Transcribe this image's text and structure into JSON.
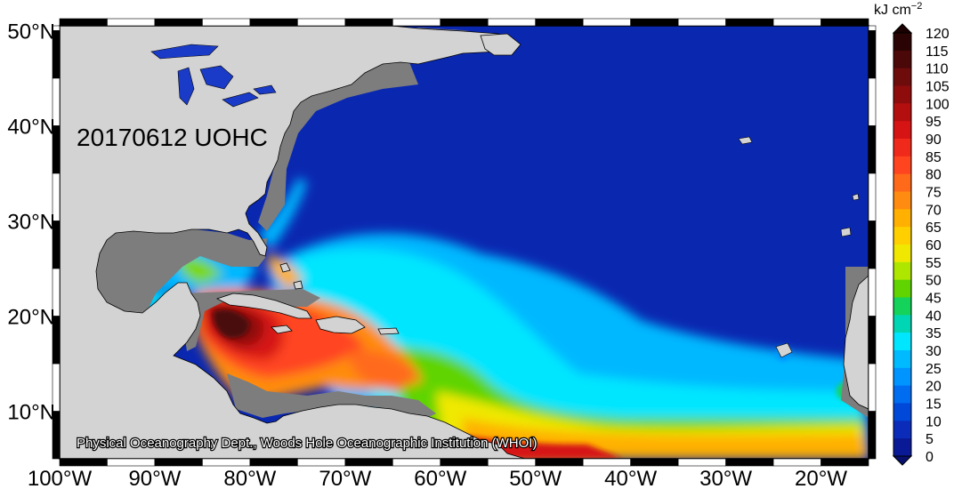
{
  "map": {
    "title": "20170612 UOHC",
    "credit": "Physical Oceanography Dept., Woods Hole Oceanographic Institution (WHOI)",
    "projection": "equirectangular",
    "lon_range": [
      -100,
      -15
    ],
    "lat_range": [
      5,
      50.5
    ],
    "lon_ticks": [
      "100°W",
      "90°W",
      "80°W",
      "70°W",
      "60°W",
      "50°W",
      "40°W",
      "30°W",
      "20°W"
    ],
    "lat_ticks": [
      "10°N",
      "20°N",
      "30°N",
      "40°N",
      "50°N"
    ],
    "colors": {
      "ocean_background": "#0a27b0",
      "land": "#d3d3d3",
      "coastal_mask": "#7d7d7d",
      "lakes": "#1a3bc8"
    }
  },
  "colorbar": {
    "unit_base": "kJ cm",
    "unit_exp": "−2",
    "labels": [
      "120",
      "115",
      "110",
      "105",
      "100",
      "95",
      "90",
      "85",
      "80",
      "75",
      "70",
      "65",
      "60",
      "55",
      "50",
      "45",
      "40",
      "35",
      "30",
      "25",
      "20",
      "15",
      "10",
      "5",
      "0"
    ],
    "colors": [
      "#2a0404",
      "#4a0808",
      "#6e0b0b",
      "#8f0c0c",
      "#b40f0f",
      "#d61414",
      "#f02a1a",
      "#ff4420",
      "#ff6a1a",
      "#ff8c10",
      "#ffb000",
      "#ffcf00",
      "#f0e800",
      "#aee600",
      "#5fd400",
      "#14d25a",
      "#00d6b4",
      "#00e6ff",
      "#00baff",
      "#0094ff",
      "#006cf0",
      "#0048d8",
      "#0a2cb8",
      "#0a1a96"
    ],
    "extend_top_color": "#1a0000",
    "extend_bottom_color": "#08106e"
  }
}
